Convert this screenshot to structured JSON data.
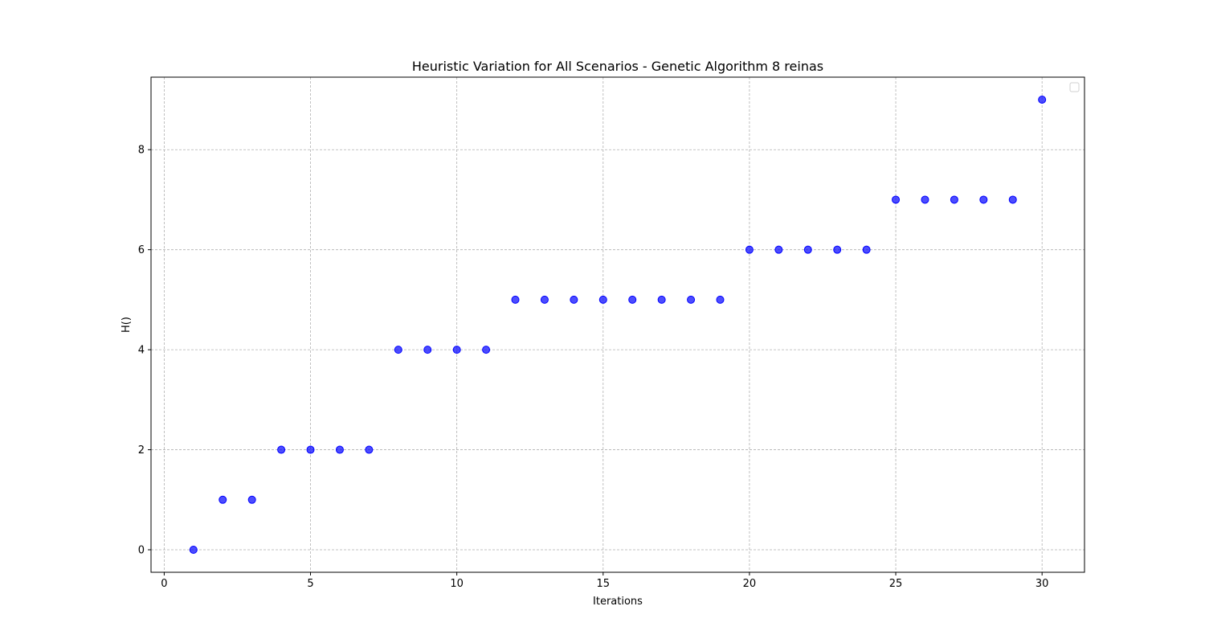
{
  "chart_data": {
    "type": "scatter",
    "title": "Heuristic Variation for All Scenarios - Genetic Algorithm 8 reinas",
    "xlabel": "Iterations",
    "ylabel": "H()",
    "xlim": [
      -0.45,
      31.45
    ],
    "ylim": [
      -0.45,
      9.45
    ],
    "xticks": [
      0,
      5,
      10,
      15,
      20,
      25,
      30
    ],
    "yticks": [
      0,
      2,
      4,
      6,
      8
    ],
    "grid": true,
    "legend": "upper right (empty)",
    "marker_color": "#0000ff",
    "series": [
      {
        "x": [
          1,
          2,
          3,
          4,
          5,
          6,
          7,
          8,
          9,
          10,
          11,
          12,
          13,
          14,
          15,
          16,
          17,
          18,
          19,
          20,
          21,
          22,
          23,
          24,
          25,
          26,
          27,
          28,
          29,
          30
        ],
        "y": [
          0,
          1,
          1,
          2,
          2,
          2,
          2,
          4,
          4,
          4,
          4,
          5,
          5,
          5,
          5,
          5,
          5,
          5,
          5,
          6,
          6,
          6,
          6,
          6,
          7,
          7,
          7,
          7,
          7,
          9
        ]
      }
    ]
  }
}
